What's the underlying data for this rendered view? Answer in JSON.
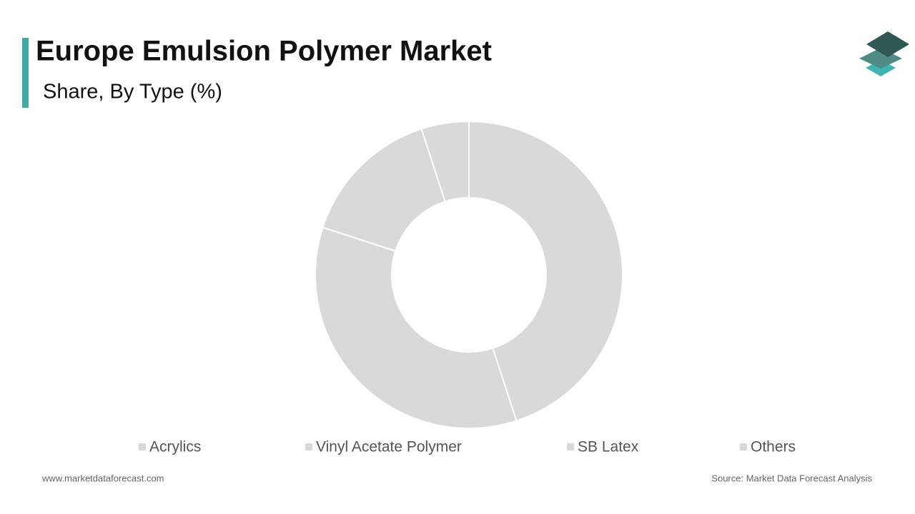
{
  "chart_data": {
    "type": "donut",
    "title": "Europe Emulsion Polymer Market",
    "subtitle": "Share, By Type (%)",
    "categories": [
      "Acrylics",
      "Vinyl Acetate Polymer",
      "SB Latex",
      "Others"
    ],
    "values": [
      45,
      35,
      15,
      5
    ],
    "colors": [
      "#d9d9d9",
      "#d9d9d9",
      "#d9d9d9",
      "#d9d9d9"
    ],
    "legend": "bottom"
  },
  "footer": {
    "website": "www.marketdataforecast.com",
    "source": "Source: Market Data Forecast Analysis"
  }
}
